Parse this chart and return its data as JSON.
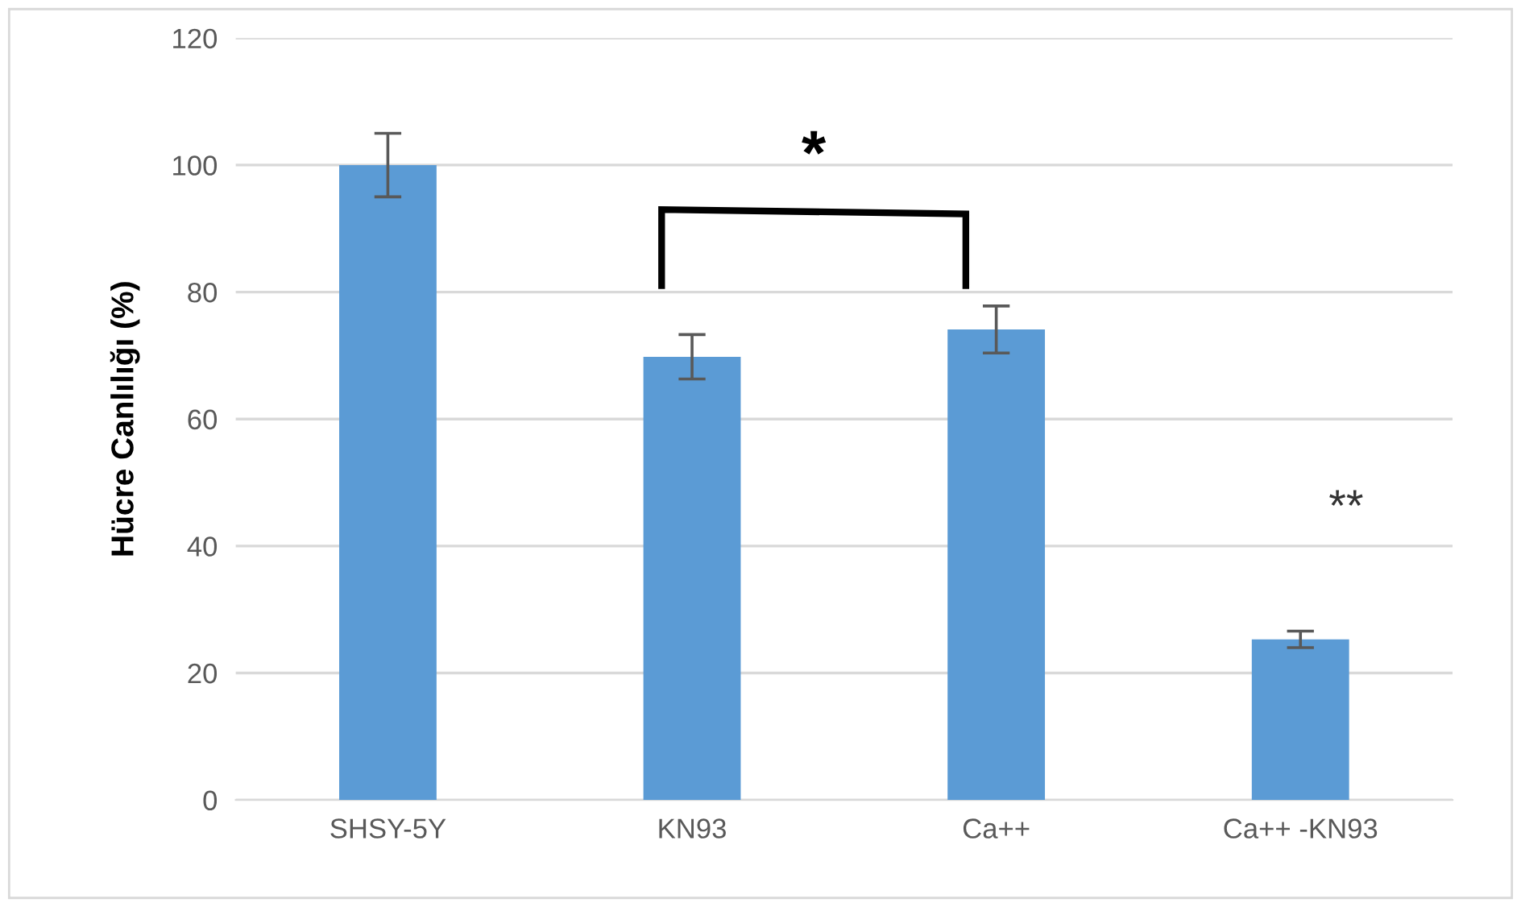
{
  "chart_data": {
    "type": "bar",
    "ylabel": "Hücre Canlılığı (%)",
    "categories": [
      "SHSY-5Y",
      "KN93",
      "Ca++",
      "Ca++ -KN93"
    ],
    "values": [
      100,
      69.8,
      74.1,
      25.3
    ],
    "errors": [
      5.0,
      3.5,
      3.7,
      1.3
    ],
    "color": "#5b9bd5",
    "ylim": [
      0,
      120
    ],
    "yticks": [
      0,
      20,
      40,
      60,
      80,
      100,
      120
    ],
    "grid": "y",
    "annotations": [
      "*",
      "**"
    ]
  }
}
